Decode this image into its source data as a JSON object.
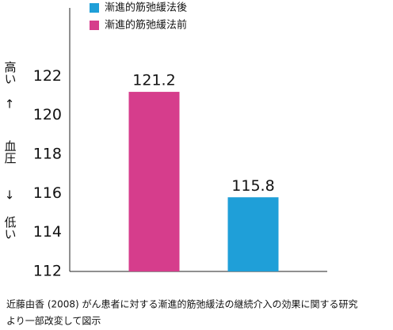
{
  "chart_data": {
    "type": "bar",
    "categories": [
      null,
      null
    ],
    "series": [
      {
        "name": "漸進的筋弛緩法後",
        "color": "#1f9fd8",
        "values": [
          null,
          115.8
        ]
      },
      {
        "name": "漸進的筋弛緩法前",
        "color": "#d63d8c",
        "values": [
          121.2,
          null
        ]
      }
    ],
    "ylim": [
      112,
      125.5
    ],
    "yticks": [
      112,
      114,
      116,
      118,
      120,
      122
    ],
    "ylabel_top": "高い",
    "ylabel_top_color": "#d6336c",
    "ylabel_arrows": [
      "↑",
      "↓"
    ],
    "ylabel": "血圧",
    "ylabel_bottom": "低い",
    "ylabel_bottom_color": "#4a5aa8",
    "source": [
      "近藤由香 (2008) がん患者に対する漸進的筋弛緩法の継続介入の効果に関する研究",
      "より一部改変して図示"
    ],
    "grid": false
  }
}
